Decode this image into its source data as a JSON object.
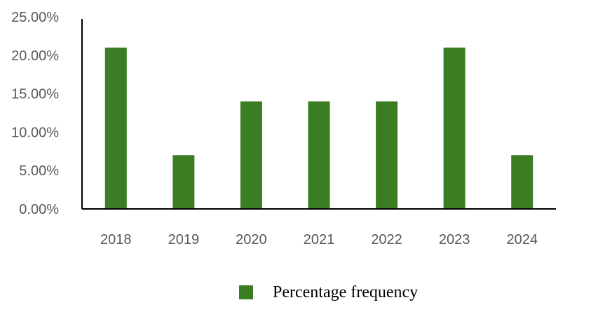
{
  "chart_data": {
    "type": "bar",
    "categories": [
      "2018",
      "2019",
      "2020",
      "2021",
      "2022",
      "2023",
      "2024"
    ],
    "series": [
      {
        "name": "Percentage frequency",
        "values": [
          21.0,
          7.0,
          14.0,
          14.0,
          14.0,
          21.0,
          7.0
        ],
        "color": "#3b7d23"
      }
    ],
    "ylim": [
      0,
      25
    ],
    "yticks": [
      "0.00%",
      "5.00%",
      "10.00%",
      "15.00%",
      "20.00%",
      "25.00%"
    ],
    "ytick_values": [
      0,
      5,
      10,
      15,
      20,
      25
    ],
    "grid": false,
    "legend_position": "bottom",
    "title": "",
    "xlabel": "",
    "ylabel": ""
  }
}
